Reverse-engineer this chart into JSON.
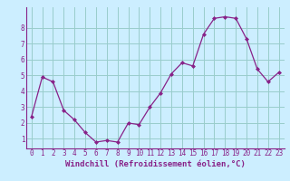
{
  "x": [
    0,
    1,
    2,
    3,
    4,
    5,
    6,
    7,
    8,
    9,
    10,
    11,
    12,
    13,
    14,
    15,
    16,
    17,
    18,
    19,
    20,
    21,
    22,
    23
  ],
  "y": [
    2.4,
    4.9,
    4.6,
    2.8,
    2.2,
    1.4,
    0.8,
    0.9,
    0.8,
    2.0,
    1.9,
    3.0,
    3.9,
    5.1,
    5.8,
    5.6,
    7.6,
    8.6,
    8.7,
    8.6,
    7.3,
    5.4,
    4.6,
    5.2
  ],
  "line_color": "#882288",
  "marker": "D",
  "marker_size": 2,
  "bg_color": "#cceeff",
  "grid_color": "#99cccc",
  "xlabel": "Windchill (Refroidissement éolien,°C)",
  "xlabel_fontsize": 6.5,
  "xtick_labels": [
    "0",
    "1",
    "2",
    "3",
    "4",
    "5",
    "6",
    "7",
    "8",
    "9",
    "10",
    "11",
    "12",
    "13",
    "14",
    "15",
    "16",
    "17",
    "18",
    "19",
    "20",
    "21",
    "22",
    "23"
  ],
  "ytick_labels": [
    "1",
    "2",
    "3",
    "4",
    "5",
    "6",
    "7",
    "8"
  ],
  "ytick_vals": [
    1,
    2,
    3,
    4,
    5,
    6,
    7,
    8
  ],
  "ylim": [
    0.4,
    9.3
  ],
  "xlim": [
    -0.5,
    23.5
  ],
  "tick_color": "#882288",
  "tick_fontsize": 5.5
}
